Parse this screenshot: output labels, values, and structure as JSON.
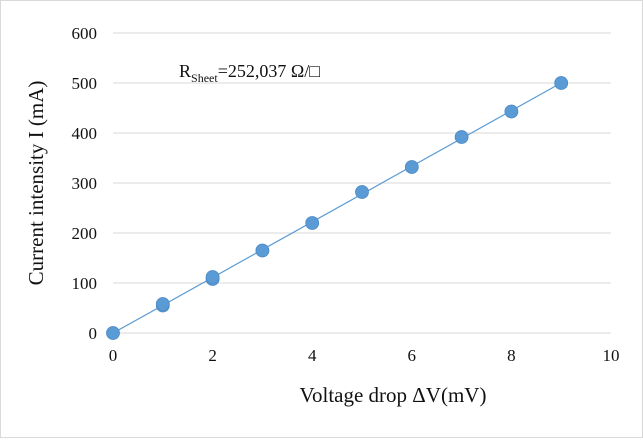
{
  "chart_data": {
    "type": "scatter",
    "title": "",
    "xlabel": "Voltage drop ΔV(mV)",
    "ylabel": "Current intensity I (mA)",
    "xlim": [
      0,
      10
    ],
    "ylim": [
      0,
      600
    ],
    "x_ticks": [
      0,
      2,
      4,
      6,
      8,
      10
    ],
    "y_ticks": [
      0,
      100,
      200,
      300,
      400,
      500,
      600
    ],
    "grid": "horizontal",
    "legend": "none",
    "trendline": "linear",
    "colors": {
      "marker": "#5b9bd5",
      "line": "#5b9bd5",
      "grid": "#d9d9d9"
    },
    "annotation": {
      "main": "R",
      "subscript": "Sheet",
      "value": "=252,037 Ω/□"
    },
    "series": [
      {
        "x": [
          0,
          1,
          1,
          2,
          2,
          3,
          4,
          5,
          6,
          7,
          8,
          9
        ],
        "y": [
          0,
          55,
          58,
          108,
          112,
          165,
          220,
          282,
          332,
          392,
          443,
          500
        ]
      }
    ]
  }
}
